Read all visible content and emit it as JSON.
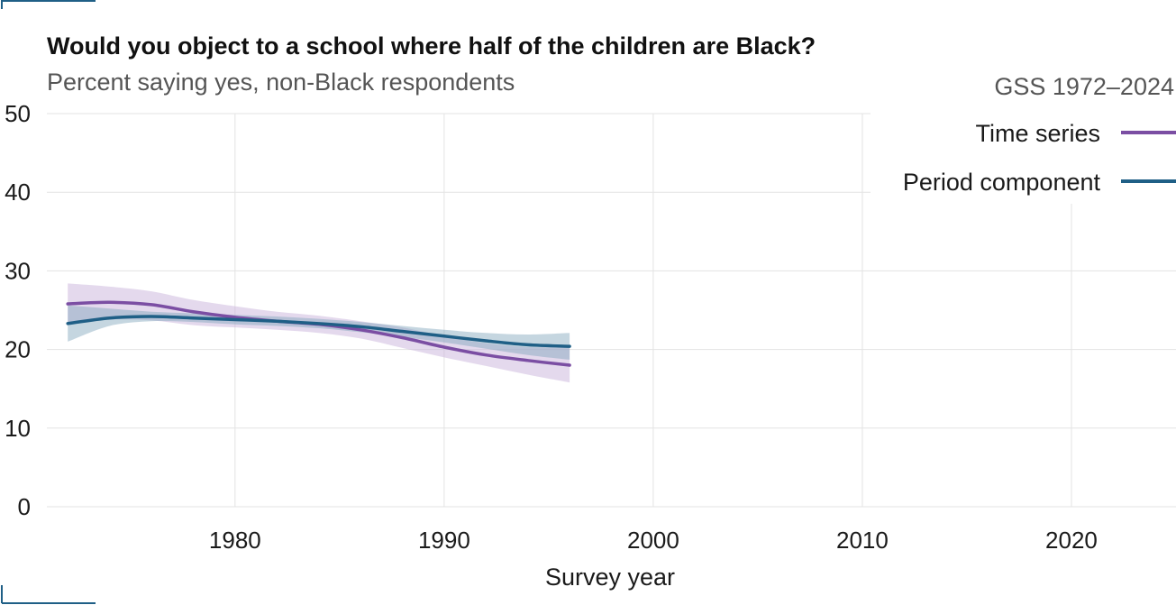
{
  "header": {
    "title": "Would you object to a school where half of the children are Black?",
    "subtitle": "Percent saying yes, non-Black respondents"
  },
  "legend": {
    "title": "GSS 1972–2024",
    "items": [
      {
        "label": "Time series",
        "color": "#7b4ea3"
      },
      {
        "label": "Period component",
        "color": "#1f5f86"
      }
    ]
  },
  "chart_data": {
    "type": "line",
    "xlabel": "Survey year",
    "ylabel": "",
    "xlim": [
      1971,
      2025
    ],
    "ylim": [
      0,
      50
    ],
    "x_ticks": [
      "1980",
      "1990",
      "2000",
      "2010",
      "2020"
    ],
    "y_ticks": [
      "0",
      "10",
      "20",
      "30",
      "40",
      "50"
    ],
    "grid": true,
    "legend_position": "top-right",
    "series": [
      {
        "name": "Time series",
        "color": "#7b4ea3",
        "band_color": "#c9b3dc",
        "x": [
          1972,
          1974,
          1976,
          1978,
          1980,
          1982,
          1984,
          1986,
          1988,
          1990,
          1992,
          1994,
          1996
        ],
        "y": [
          25.8,
          26.0,
          25.7,
          24.8,
          24.1,
          23.6,
          23.2,
          22.5,
          21.5,
          20.3,
          19.3,
          18.6,
          18.0
        ],
        "lower": [
          23.2,
          23.8,
          23.7,
          23.1,
          22.8,
          22.5,
          22.1,
          21.4,
          20.2,
          19.0,
          17.9,
          16.8,
          15.8
        ],
        "upper": [
          28.4,
          28.0,
          27.4,
          26.3,
          25.5,
          24.8,
          24.3,
          23.6,
          22.8,
          21.7,
          20.8,
          20.3,
          20.3
        ]
      },
      {
        "name": "Period component",
        "color": "#1f5f86",
        "band_color": "#7fa4bb",
        "x": [
          1972,
          1974,
          1976,
          1978,
          1980,
          1982,
          1984,
          1986,
          1988,
          1990,
          1992,
          1994,
          1996
        ],
        "y": [
          23.3,
          24.0,
          24.2,
          24.0,
          23.8,
          23.6,
          23.3,
          22.9,
          22.3,
          21.7,
          21.1,
          20.6,
          20.4
        ],
        "lower": [
          21.0,
          23.0,
          23.6,
          23.5,
          23.2,
          23.0,
          22.7,
          22.2,
          21.6,
          20.9,
          20.1,
          19.3,
          18.7
        ],
        "upper": [
          25.6,
          25.2,
          24.8,
          24.6,
          24.4,
          24.2,
          23.9,
          23.5,
          23.0,
          22.5,
          22.1,
          21.9,
          22.1
        ]
      }
    ]
  }
}
